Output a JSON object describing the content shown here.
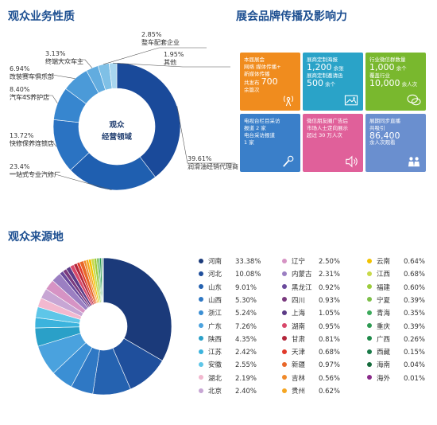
{
  "sections": {
    "audience_nature": "观众业务性质",
    "brand_promotion": "展会品牌传播及影响力",
    "audience_source": "观众来源地"
  },
  "donut_center": [
    "观众",
    "经营领域"
  ],
  "chart_data": [
    {
      "type": "pie",
      "title": "观众业务性质",
      "slices": [
        {
          "label": "润滑油经销代理商",
          "value": 39.61,
          "value_text": "39.61%",
          "color": "#1a4a9a"
        },
        {
          "label": "一站式专业汽修厂",
          "value": 23.4,
          "value_text": "23.4%",
          "color": "#1f5fb0"
        },
        {
          "label": "快修保养连锁店",
          "value": 13.72,
          "value_text": "13.72%",
          "color": "#2b73c2"
        },
        {
          "label": "汽车4S养护店",
          "value": 8.4,
          "value_text": "8.40%",
          "color": "#3786cf"
        },
        {
          "label": "改装赛车俱乐部",
          "value": 6.94,
          "value_text": "6.94%",
          "color": "#4b9ad8"
        },
        {
          "label": "终端大众车主",
          "value": 3.13,
          "value_text": "3.13%",
          "color": "#62acdf"
        },
        {
          "label": "整车配套企业",
          "value": 2.85,
          "value_text": "2.85%",
          "color": "#7fc0e6"
        },
        {
          "label": "其他",
          "value": 1.95,
          "value_text": "1.95%",
          "color": "#a8d6ef"
        }
      ]
    },
    {
      "type": "pie",
      "title": "观众来源地",
      "slices": [
        {
          "label": "河南",
          "value": 33.38,
          "value_text": "33.38%",
          "color": "#1b3a7a"
        },
        {
          "label": "河北",
          "value": 10.08,
          "value_text": "10.08%",
          "color": "#1f4f9c"
        },
        {
          "label": "山东",
          "value": 9.01,
          "value_text": "9.01%",
          "color": "#2562b0"
        },
        {
          "label": "山西",
          "value": 5.3,
          "value_text": "5.30%",
          "color": "#2f78c4"
        },
        {
          "label": "浙江",
          "value": 5.24,
          "value_text": "5.24%",
          "color": "#3b8fd4"
        },
        {
          "label": "广东",
          "value": 7.26,
          "value_text": "7.26%",
          "color": "#4aa2de"
        },
        {
          "label": "陕西",
          "value": 4.35,
          "value_text": "4.35%",
          "color": "#2aa0c8"
        },
        {
          "label": "江苏",
          "value": 2.42,
          "value_text": "2.42%",
          "color": "#3bb3dd"
        },
        {
          "label": "安徽",
          "value": 2.55,
          "value_text": "2.55%",
          "color": "#5ec6e8"
        },
        {
          "label": "湖北",
          "value": 2.19,
          "value_text": "2.19%",
          "color": "#f2b8cf"
        },
        {
          "label": "北京",
          "value": 2.4,
          "value_text": "2.40%",
          "color": "#c7a6d4"
        },
        {
          "label": "辽宁",
          "value": 2.5,
          "value_text": "2.50%",
          "color": "#d693c4"
        },
        {
          "label": "内蒙古",
          "value": 2.31,
          "value_text": "2.31%",
          "color": "#9b7fc2"
        },
        {
          "label": "黑龙江",
          "value": 0.92,
          "value_text": "0.92%",
          "color": "#6a4a9c"
        },
        {
          "label": "四川",
          "value": 0.93,
          "value_text": "0.93%",
          "color": "#7a3a7e"
        },
        {
          "label": "上海",
          "value": 1.05,
          "value_text": "1.05%",
          "color": "#5b3a86"
        },
        {
          "label": "湖南",
          "value": 0.95,
          "value_text": "0.95%",
          "color": "#d8486a"
        },
        {
          "label": "甘肃",
          "value": 0.81,
          "value_text": "0.81%",
          "color": "#b3263a"
        },
        {
          "label": "天津",
          "value": 0.68,
          "value_text": "0.68%",
          "color": "#e13a2b"
        },
        {
          "label": "新疆",
          "value": 0.97,
          "value_text": "0.97%",
          "color": "#e8672a"
        },
        {
          "label": "吉林",
          "value": 0.56,
          "value_text": "0.56%",
          "color": "#f08a2a"
        },
        {
          "label": "贵州",
          "value": 0.62,
          "value_text": "0.62%",
          "color": "#f5a623"
        },
        {
          "label": "云南",
          "value": 0.64,
          "value_text": "0.64%",
          "color": "#f2c200"
        },
        {
          "label": "江西",
          "value": 0.68,
          "value_text": "0.68%",
          "color": "#c8d94a"
        },
        {
          "label": "福建",
          "value": 0.6,
          "value_text": "0.60%",
          "color": "#9ccc3c"
        },
        {
          "label": "宁夏",
          "value": 0.39,
          "value_text": "0.39%",
          "color": "#7dbf4a"
        },
        {
          "label": "青海",
          "value": 0.35,
          "value_text": "0.35%",
          "color": "#3daa5c"
        },
        {
          "label": "重庆",
          "value": 0.39,
          "value_text": "0.39%",
          "color": "#2e9a52"
        },
        {
          "label": "广西",
          "value": 0.26,
          "value_text": "0.26%",
          "color": "#1f8a4a"
        },
        {
          "label": "西藏",
          "value": 0.15,
          "value_text": "0.15%",
          "color": "#1a7a48"
        },
        {
          "label": "海南",
          "value": 0.04,
          "value_text": "0.04%",
          "color": "#156b3c"
        },
        {
          "label": "海外",
          "value": 0.01,
          "value_text": "0.01%",
          "color": "#8a2a8a"
        }
      ]
    }
  ],
  "tiles": [
    {
      "lines": [
        "本届展会",
        "网络 媒体传播+",
        "新媒体传播"
      ],
      "line_big_prefix": "共发布",
      "big": "700",
      "line_after": "余篇次",
      "color": "#f08c1e",
      "icon": "broadcast-icon"
    },
    {
      "lines": [
        "展商定制海报"
      ],
      "big": "1,200",
      "big_suffix": "余张",
      "line_mid": "展商定制邀请函",
      "big2": "500",
      "big2_suffix": "余个",
      "color": "#2aa3c8",
      "icon": "image-icon"
    },
    {
      "lines": [
        "行业微信群数量"
      ],
      "big": "1,000",
      "big_suffix": "余个",
      "line_mid": "覆盖行业",
      "big2": "10,000",
      "big2_suffix": "余人次",
      "color": "#79b82e",
      "icon": "chat-icon"
    },
    {
      "lines": [
        "电视台栏目采访",
        "报道 2 家",
        "电台采访报道",
        "1 家"
      ],
      "color": "#3a7fc9",
      "icon": "microphone-icon"
    },
    {
      "lines": [
        "微信朋友圈广告后",
        "市场人士定向展示",
        "超过 30 万人次"
      ],
      "color": "#e0609a",
      "icon": "speaker-icon"
    },
    {
      "lines": [
        "展期同步直播",
        "共吸引"
      ],
      "big": "86,400",
      "line_after": "余人次观看",
      "color": "#6a8fcf",
      "icon": "people-icon"
    }
  ]
}
